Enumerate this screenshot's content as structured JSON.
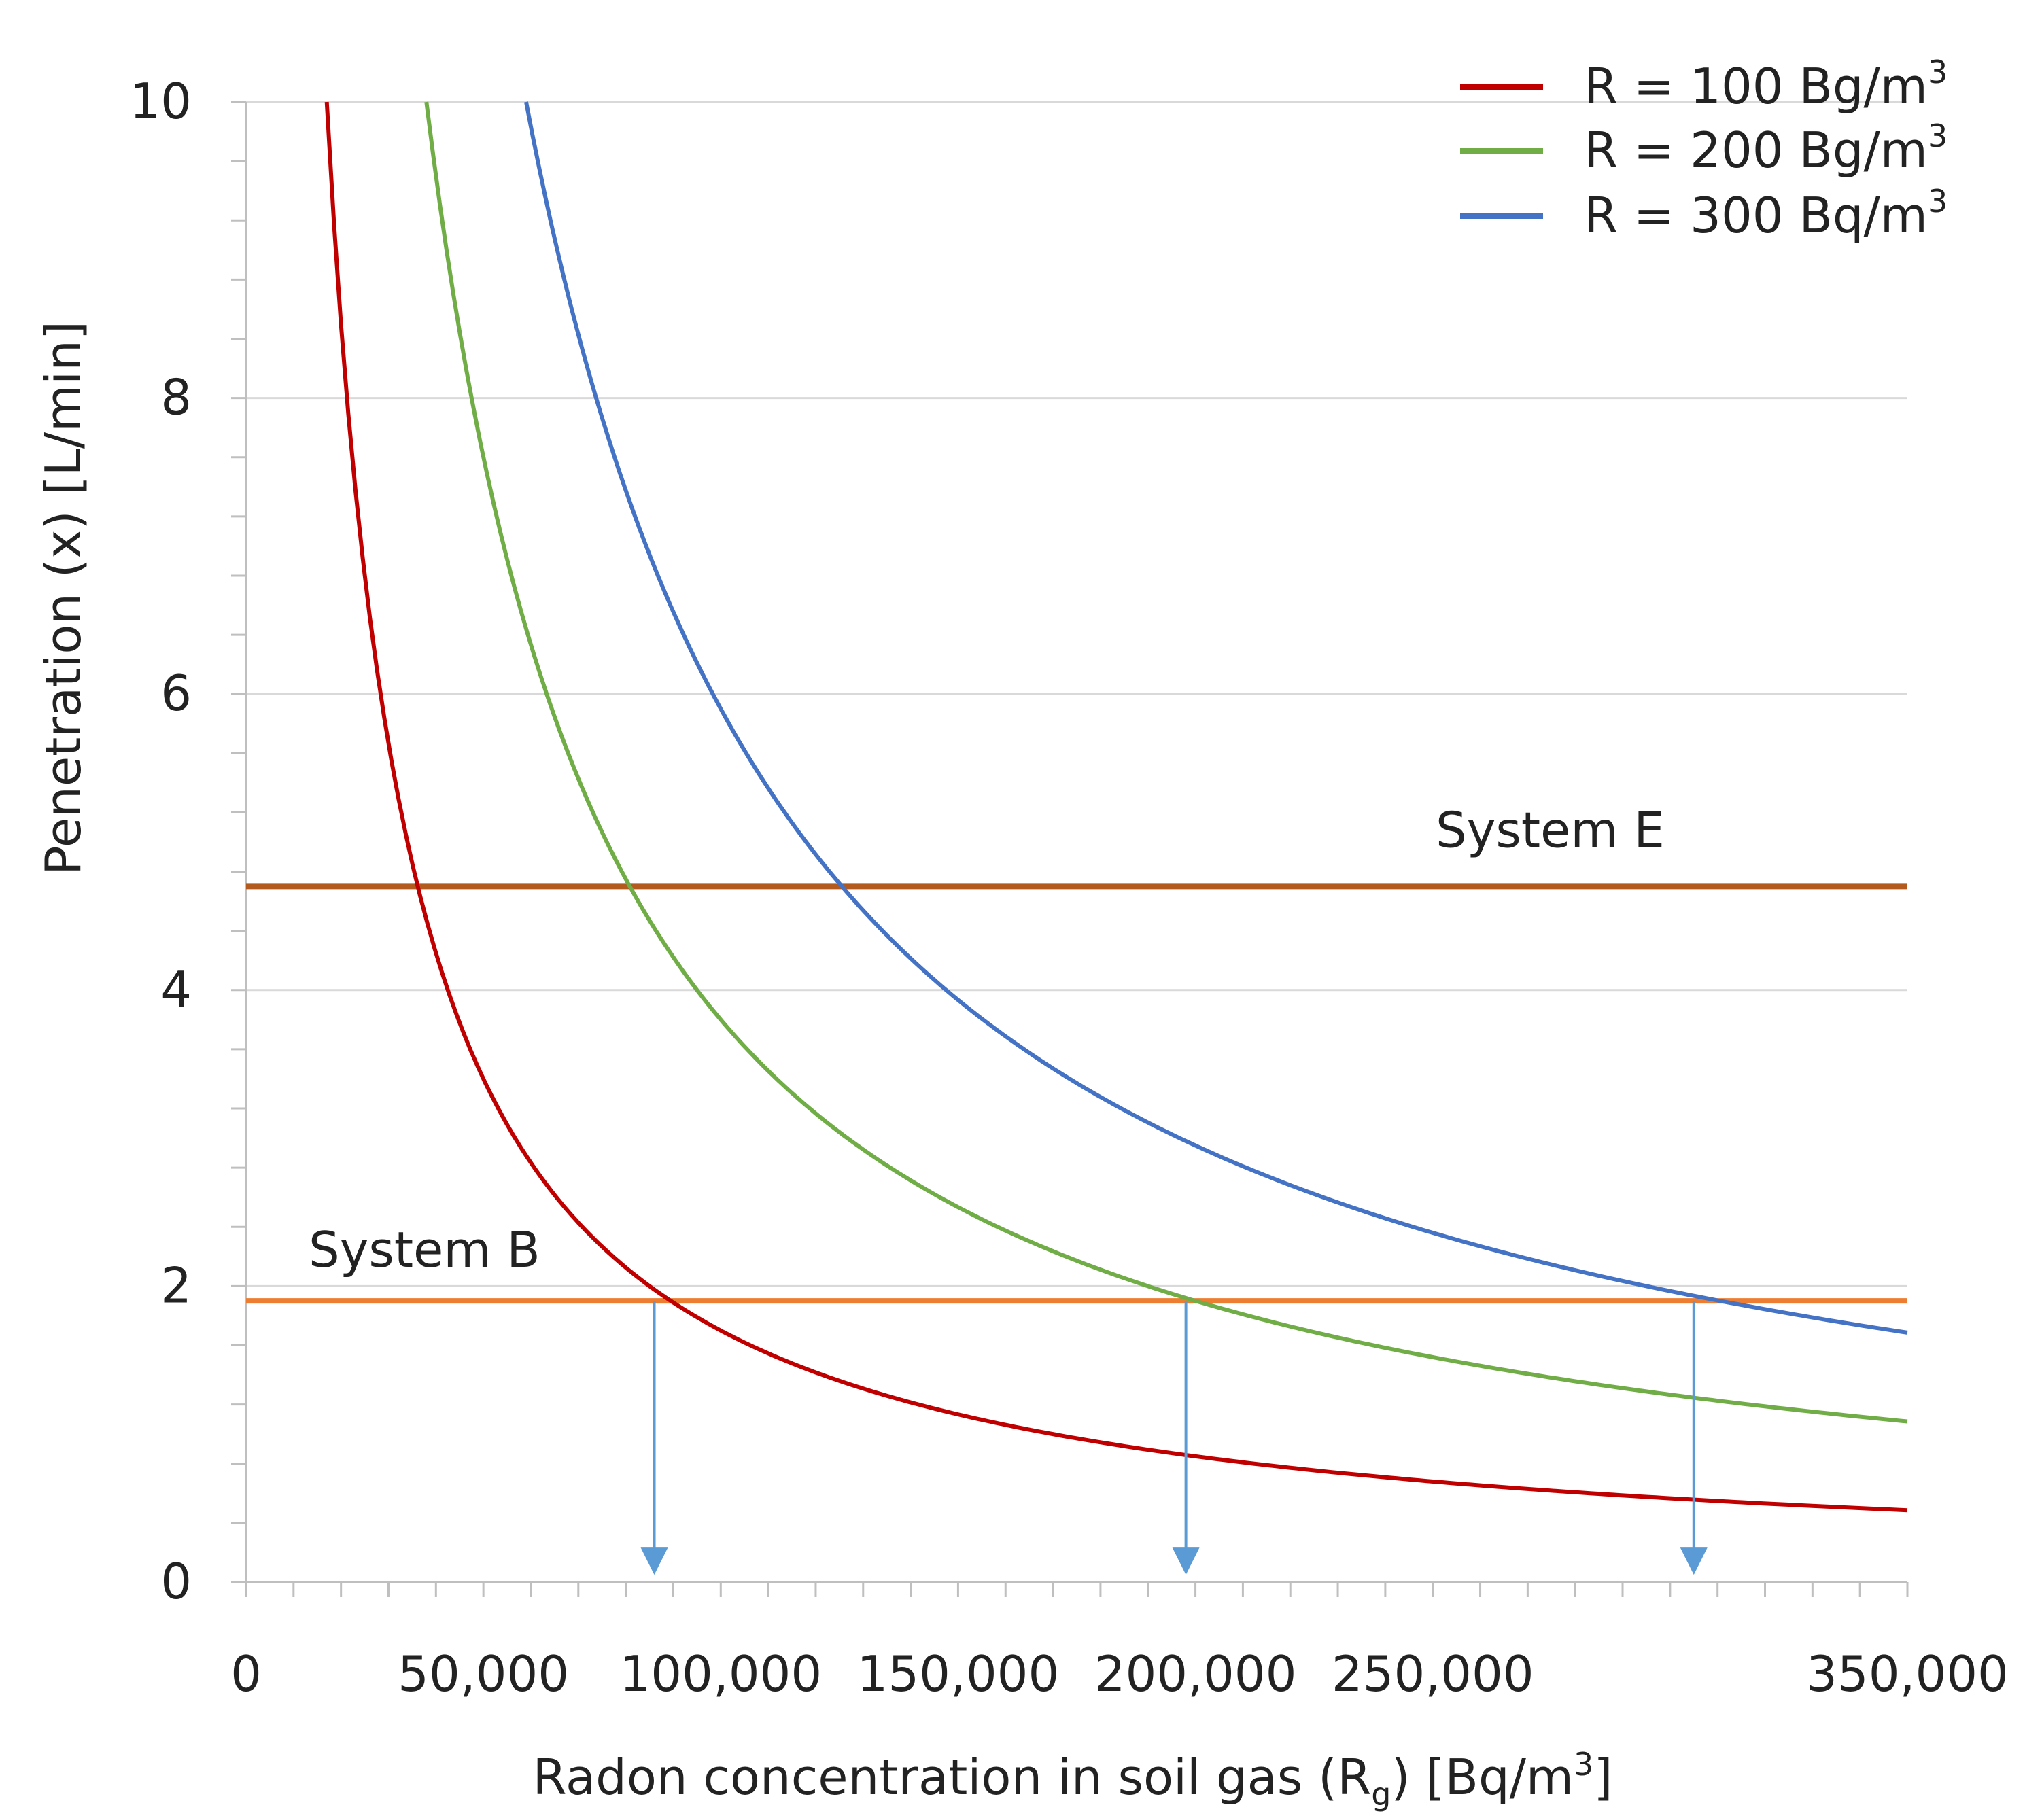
{
  "chart_data": {
    "type": "line",
    "title": "",
    "xlabel": {
      "main": "Radon concentration in soil gas (R",
      "sub": "g",
      "mid": ") [Bq/m",
      "sup": "3",
      "end": "]"
    },
    "ylabel": "Penetration (x) [L/min]",
    "xlim": [
      0,
      350000
    ],
    "ylim": [
      0,
      10
    ],
    "grid": true,
    "x_ticks": [
      {
        "value": 0,
        "label": "0"
      },
      {
        "value": 50000,
        "label": "50,000"
      },
      {
        "value": 100000,
        "label": "100,000"
      },
      {
        "value": 150000,
        "label": "150,000"
      },
      {
        "value": 200000,
        "label": "200,000"
      },
      {
        "value": 250000,
        "label": "250,000"
      },
      {
        "value": 350000,
        "label": "350,000"
      }
    ],
    "y_ticks": [
      {
        "value": 0,
        "label": "0"
      },
      {
        "value": 2,
        "label": "2"
      },
      {
        "value": 4,
        "label": "4"
      },
      {
        "value": 6,
        "label": "6"
      },
      {
        "value": 8,
        "label": "8"
      },
      {
        "value": 10,
        "label": "10"
      }
    ],
    "legend_position": "top-right",
    "series": [
      {
        "name": "R = 100 Bg/m3",
        "label": "R = 100 Bg/m",
        "sup": "3",
        "color": "#c00000",
        "k": 170000,
        "x": [
          17000,
          20000,
          25000,
          30000,
          36000,
          45000,
          60000,
          86000,
          100000,
          120000,
          150000,
          200000,
          250000,
          300000,
          350000
        ],
        "values": [
          10.0,
          8.5,
          6.8,
          5.67,
          4.72,
          3.78,
          2.83,
          1.98,
          1.7,
          1.42,
          1.13,
          0.85,
          0.68,
          0.57,
          0.49
        ]
      },
      {
        "name": "R = 200 Bg/m3",
        "label": "R = 200 Bg/m",
        "sup": "3",
        "color": "#70ad47",
        "k": 380000,
        "x": [
          38000,
          45000,
          55000,
          65000,
          80000,
          100000,
          125000,
          150000,
          175000,
          198000,
          225000,
          250000,
          300000,
          350000
        ],
        "values": [
          10.0,
          8.44,
          6.91,
          5.85,
          4.75,
          3.8,
          3.04,
          2.53,
          2.17,
          1.92,
          1.69,
          1.52,
          1.27,
          1.09
        ]
      },
      {
        "name": "R = 300 Bq/m3",
        "label": "R = 300 Bq/m",
        "sup": "3",
        "color": "#4472c4",
        "k": 590000,
        "x": [
          59000,
          70000,
          85000,
          100000,
          124000,
          150000,
          175000,
          200000,
          250000,
          305000,
          350000
        ],
        "values": [
          10.0,
          8.43,
          6.94,
          5.9,
          4.76,
          3.93,
          3.37,
          2.95,
          2.36,
          1.93,
          1.69
        ]
      }
    ],
    "reference_lines": [
      {
        "name": "System E",
        "y": 4.7,
        "color": "#b35a1f"
      },
      {
        "name": "System B",
        "y": 1.9,
        "color": "#ed7d31"
      }
    ],
    "arrows": {
      "color": "#5b9bd5",
      "x": [
        86000,
        198000,
        305000
      ],
      "y_from": 1.9,
      "y_to": 0.05
    }
  }
}
